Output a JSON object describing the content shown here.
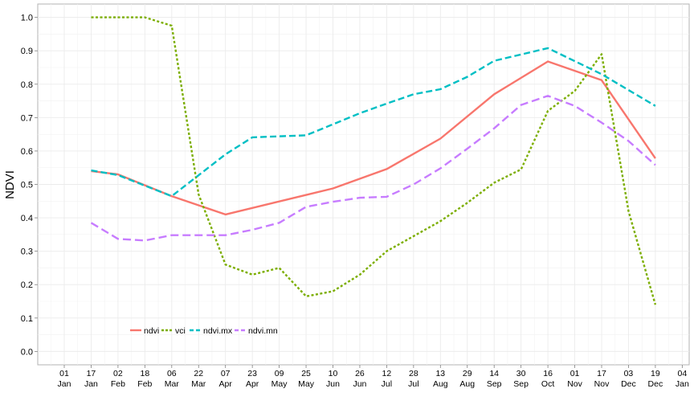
{
  "chart_data": {
    "type": "line",
    "ylabel": "NDVI",
    "xlabel": "",
    "ylim": [
      -0.04,
      1.04
    ],
    "grid": true,
    "legend_position": "bottom-left inside",
    "x_ticks": [
      {
        "day": "01",
        "month": "Jan"
      },
      {
        "day": "17",
        "month": "Jan"
      },
      {
        "day": "02",
        "month": "Feb"
      },
      {
        "day": "18",
        "month": "Feb"
      },
      {
        "day": "06",
        "month": "Mar"
      },
      {
        "day": "22",
        "month": "Mar"
      },
      {
        "day": "07",
        "month": "Apr"
      },
      {
        "day": "23",
        "month": "Apr"
      },
      {
        "day": "09",
        "month": "May"
      },
      {
        "day": "25",
        "month": "May"
      },
      {
        "day": "10",
        "month": "Jun"
      },
      {
        "day": "26",
        "month": "Jun"
      },
      {
        "day": "12",
        "month": "Jul"
      },
      {
        "day": "28",
        "month": "Jul"
      },
      {
        "day": "13",
        "month": "Aug"
      },
      {
        "day": "29",
        "month": "Aug"
      },
      {
        "day": "14",
        "month": "Sep"
      },
      {
        "day": "30",
        "month": "Sep"
      },
      {
        "day": "16",
        "month": "Oct"
      },
      {
        "day": "01",
        "month": "Nov"
      },
      {
        "day": "17",
        "month": "Nov"
      },
      {
        "day": "03",
        "month": "Dec"
      },
      {
        "day": "19",
        "month": "Dec"
      },
      {
        "day": "04",
        "month": "Jan"
      }
    ],
    "y_ticks": [
      "0.0",
      "0.1",
      "0.2",
      "0.3",
      "0.4",
      "0.5",
      "0.6",
      "0.7",
      "0.8",
      "0.9",
      "1.0"
    ],
    "series": [
      {
        "name": "ndvi",
        "color": "#F8766D",
        "dash": "solid",
        "x": [
          "17 Jan",
          "02 Feb",
          "06 Mar",
          "07 Apr",
          "10 Jun",
          "12 Jul",
          "13 Aug",
          "14 Sep",
          "16 Oct",
          "17 Nov",
          "19 Dec"
        ],
        "values": [
          0.54,
          0.53,
          0.465,
          0.41,
          0.488,
          0.546,
          0.637,
          0.77,
          0.868,
          0.812,
          0.578
        ]
      },
      {
        "name": "vci",
        "color": "#7CAE00",
        "dash": "dotted",
        "x": [
          "17 Jan",
          "02 Feb",
          "18 Feb",
          "06 Mar",
          "22 Mar",
          "07 Apr",
          "23 Apr",
          "09 May",
          "25 May",
          "10 Jun",
          "26 Jun",
          "12 Jul",
          "28 Jul",
          "13 Aug",
          "29 Aug",
          "14 Sep",
          "30 Sep",
          "16 Oct",
          "01 Nov",
          "17 Nov",
          "03 Dec",
          "19 Dec"
        ],
        "values": [
          1.0,
          1.0,
          1.0,
          0.975,
          0.47,
          0.26,
          0.23,
          0.25,
          0.165,
          0.18,
          0.23,
          0.3,
          0.345,
          0.39,
          0.445,
          0.505,
          0.545,
          0.72,
          0.78,
          0.89,
          0.42,
          0.14
        ]
      },
      {
        "name": "ndvi.mx",
        "color": "#00BFC4",
        "dash": "dashed",
        "x": [
          "17 Jan",
          "02 Feb",
          "06 Mar",
          "07 Apr",
          "23 Apr",
          "25 May",
          "10 Jun",
          "26 Jun",
          "12 Jul",
          "28 Jul",
          "13 Aug",
          "29 Aug",
          "14 Sep",
          "16 Oct",
          "17 Nov",
          "19 Dec"
        ],
        "values": [
          0.542,
          0.528,
          0.465,
          0.59,
          0.641,
          0.647,
          0.68,
          0.713,
          0.742,
          0.77,
          0.785,
          0.822,
          0.87,
          0.908,
          0.83,
          0.735
        ]
      },
      {
        "name": "ndvi.mn",
        "color": "#C77CFF",
        "dash": "longdash",
        "x": [
          "17 Jan",
          "02 Feb",
          "18 Feb",
          "06 Mar",
          "22 Mar",
          "07 Apr",
          "23 Apr",
          "09 May",
          "25 May",
          "10 Jun",
          "26 Jun",
          "12 Jul",
          "28 Jul",
          "13 Aug",
          "29 Aug",
          "14 Sep",
          "30 Sep",
          "16 Oct",
          "01 Nov",
          "17 Nov",
          "03 Dec",
          "19 Dec"
        ],
        "values": [
          0.385,
          0.337,
          0.332,
          0.348,
          0.348,
          0.348,
          0.364,
          0.385,
          0.433,
          0.448,
          0.46,
          0.463,
          0.5,
          0.548,
          0.607,
          0.668,
          0.738,
          0.765,
          0.735,
          0.685,
          0.63,
          0.558
        ]
      }
    ]
  }
}
